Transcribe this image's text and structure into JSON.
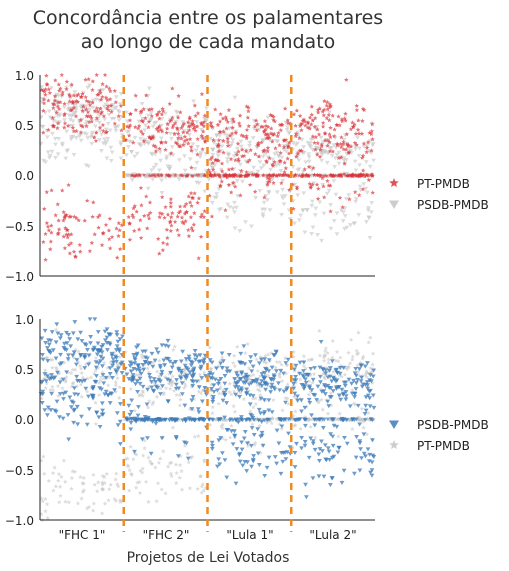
{
  "chart_data": {
    "type": "scatter",
    "title_line1": "Concordância entre os palamentares",
    "title_line2": "ao longo de cada mandato",
    "xlabel": "Projetos de Lei Votados",
    "x_tick_labels": [
      "\"FHC 1\"",
      "\"FHC 2\"",
      "\"Lula 1\"",
      "\"Lula 2\""
    ],
    "ylim": [
      -1.0,
      1.0
    ],
    "y_ticks": [
      "1.0",
      "0.5",
      "0.0",
      "−0.5",
      "−1.0"
    ],
    "mandate_boundaries": [
      1,
      2,
      3
    ],
    "colors": {
      "pt": "#d9343a",
      "psdb": "#3b7ab8",
      "gray": "#c4c4c4",
      "divider": "#f28a1e"
    },
    "panels": [
      {
        "legend": [
          {
            "label": "PT-PMDB",
            "marker": "star",
            "color": "#d9343a"
          },
          {
            "label": "PSDB-PMDB",
            "marker": "triangle-down",
            "color": "#c4c4c4"
          }
        ],
        "series": [
          {
            "name": "PT-PMDB",
            "color": "#d9343a",
            "marker": "star",
            "mandate_summary": [
              {
                "mandate": "FHC 1",
                "upper_cluster_mean": 0.7,
                "lower_cluster_mean": -0.55
              },
              {
                "mandate": "FHC 2",
                "upper_cluster_mean": 0.45,
                "lower_cluster_mean": -0.4
              },
              {
                "mandate": "Lula 1",
                "upper_cluster_mean": 0.4,
                "lower_cluster_mean": 0.0
              },
              {
                "mandate": "Lula 2",
                "upper_cluster_mean": 0.45,
                "lower_cluster_mean": 0.0
              }
            ]
          },
          {
            "name": "PSDB-PMDB",
            "color": "#c4c4c4",
            "marker": "triangle-down",
            "mandate_summary": [
              {
                "mandate": "FHC 1",
                "upper_cluster_mean": 0.6,
                "lower_cluster_mean": 0.4
              },
              {
                "mandate": "FHC 2",
                "upper_cluster_mean": 0.4,
                "lower_cluster_mean": 0.0
              },
              {
                "mandate": "Lula 1",
                "upper_cluster_mean": 0.3,
                "lower_cluster_mean": -0.25
              },
              {
                "mandate": "Lula 2",
                "upper_cluster_mean": 0.25,
                "lower_cluster_mean": -0.35
              }
            ]
          }
        ]
      },
      {
        "legend": [
          {
            "label": "PSDB-PMDB",
            "marker": "triangle-down",
            "color": "#3b7ab8"
          },
          {
            "label": "PT-PMDB",
            "marker": "star",
            "color": "#c4c4c4"
          }
        ],
        "series": [
          {
            "name": "PSDB-PMDB",
            "color": "#3b7ab8",
            "marker": "triangle-down",
            "mandate_summary": [
              {
                "mandate": "FHC 1",
                "upper_cluster_mean": 0.7,
                "lower_cluster_mean": 0.2
              },
              {
                "mandate": "FHC 2",
                "upper_cluster_mean": 0.5,
                "lower_cluster_mean": 0.0
              },
              {
                "mandate": "Lula 1",
                "upper_cluster_mean": 0.4,
                "lower_cluster_mean": -0.2
              },
              {
                "mandate": "Lula 2",
                "upper_cluster_mean": 0.35,
                "lower_cluster_mean": -0.3
              }
            ]
          },
          {
            "name": "PT-PMDB",
            "color": "#c4c4c4",
            "marker": "star",
            "mandate_summary": [
              {
                "mandate": "FHC 1",
                "upper_cluster_mean": 0.45,
                "lower_cluster_mean": -0.65
              },
              {
                "mandate": "FHC 2",
                "upper_cluster_mean": 0.4,
                "lower_cluster_mean": -0.45
              },
              {
                "mandate": "Lula 1",
                "upper_cluster_mean": 0.45,
                "lower_cluster_mean": 0.0
              },
              {
                "mandate": "Lula 2",
                "upper_cluster_mean": 0.5,
                "lower_cluster_mean": 0.0
              }
            ]
          }
        ]
      }
    ]
  }
}
